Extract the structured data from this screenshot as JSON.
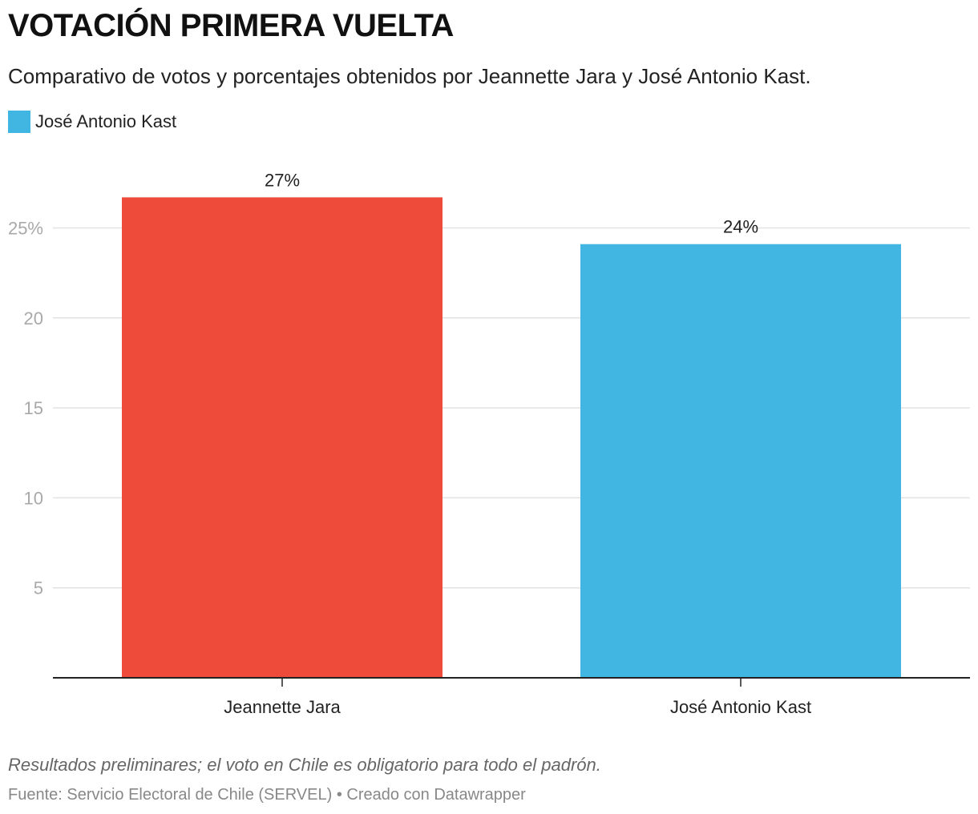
{
  "title": "VOTACIÓN PRIMERA VUELTA",
  "subtitle": "Comparativo de votos y porcentajes obtenidos por Jeannette Jara y José Antonio Kast.",
  "legend": [
    {
      "label": "José Antonio Kast",
      "color": "#41b6e2"
    }
  ],
  "note": "Resultados preliminares; el voto en Chile es obligatorio para todo el padrón.",
  "source": "Fuente: Servicio Electoral de Chile (SERVEL) • Creado con Datawrapper",
  "chart_data": {
    "type": "bar",
    "categories": [
      "Jeannette Jara",
      "José Antonio Kast"
    ],
    "values": [
      26.7,
      24.1
    ],
    "value_labels": [
      "27%",
      "24%"
    ],
    "colors": [
      "#ef4b3b",
      "#41b6e2"
    ],
    "yticks": [
      {
        "value": 5,
        "label": "5"
      },
      {
        "value": 10,
        "label": "10"
      },
      {
        "value": 15,
        "label": "15"
      },
      {
        "value": 20,
        "label": "20"
      },
      {
        "value": 25,
        "label": "25%"
      }
    ],
    "ylim": [
      0,
      27.5
    ],
    "grid": true,
    "legend_position": "top-left"
  }
}
